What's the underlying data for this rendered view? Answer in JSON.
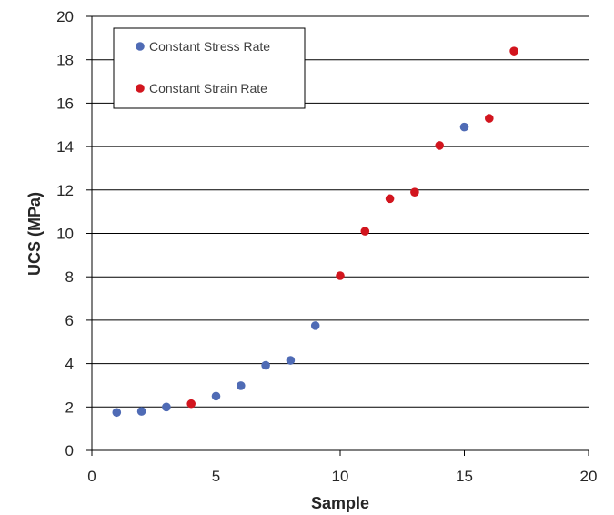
{
  "chart_data": {
    "type": "scatter",
    "title": "",
    "xlabel": "Sample",
    "ylabel": "UCS (MPa)",
    "xlim": [
      0,
      20
    ],
    "ylim": [
      0,
      20
    ],
    "xticks": [
      0,
      5,
      10,
      15,
      20
    ],
    "yticks": [
      0,
      2,
      4,
      6,
      8,
      10,
      12,
      14,
      16,
      18,
      20
    ],
    "grid": "horizontal",
    "legend_position": "top-left",
    "series": [
      {
        "name": "Constant Stress Rate",
        "color": "#4F6BB5",
        "points": [
          {
            "x": 1,
            "y": 1.75
          },
          {
            "x": 2,
            "y": 1.8
          },
          {
            "x": 3,
            "y": 2.0
          },
          {
            "x": 5,
            "y": 2.5
          },
          {
            "x": 6,
            "y": 2.98
          },
          {
            "x": 7,
            "y": 3.92
          },
          {
            "x": 8,
            "y": 4.15
          },
          {
            "x": 9,
            "y": 5.75
          },
          {
            "x": 15,
            "y": 14.9
          }
        ]
      },
      {
        "name": "Constant Strain Rate",
        "color": "#D2151E",
        "points": [
          {
            "x": 4,
            "y": 2.15
          },
          {
            "x": 10,
            "y": 8.05
          },
          {
            "x": 11,
            "y": 10.1
          },
          {
            "x": 12,
            "y": 11.6
          },
          {
            "x": 13,
            "y": 11.9
          },
          {
            "x": 14,
            "y": 14.05
          },
          {
            "x": 16,
            "y": 15.3
          },
          {
            "x": 17,
            "y": 18.4
          }
        ]
      }
    ]
  }
}
